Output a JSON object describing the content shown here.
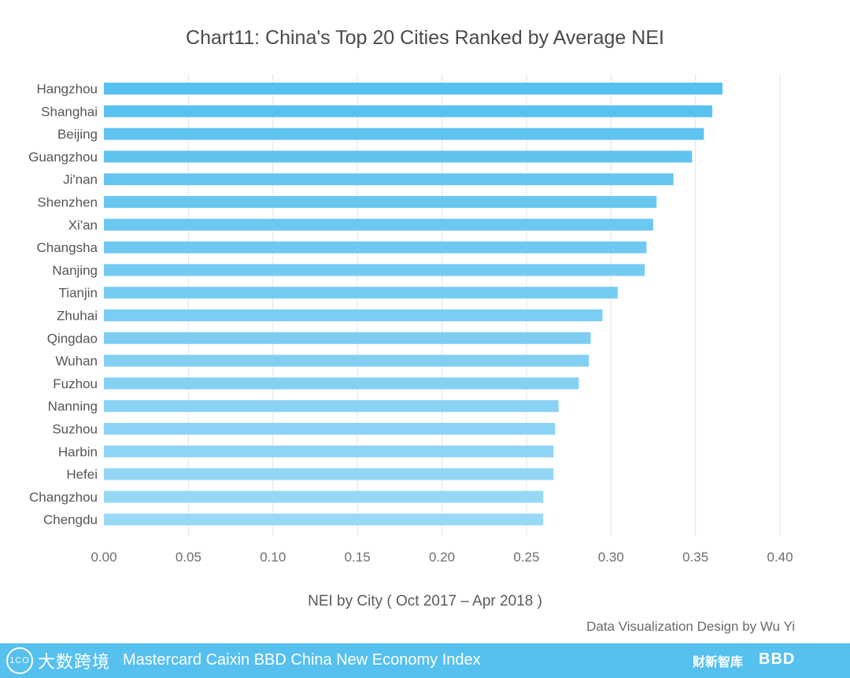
{
  "chart_data": {
    "type": "bar",
    "orientation": "horizontal",
    "title": "Chart11:  China's Top 20 Cities Ranked by Average NEI",
    "xlabel": "NEI by City ( Oct 2017 – Apr 2018 )",
    "ylabel": "",
    "xlim": [
      0,
      0.4
    ],
    "xticks": [
      "0.00",
      "0.05",
      "0.10",
      "0.15",
      "0.20",
      "0.25",
      "0.30",
      "0.35",
      "0.40"
    ],
    "grid": "vertical",
    "categories": [
      "Hangzhou",
      "Shanghai",
      "Beijing",
      "Guangzhou",
      "Ji'nan",
      "Shenzhen",
      "Xi'an",
      "Changsha",
      "Nanjing",
      "Tianjin",
      "Zhuhai",
      "Qingdao",
      "Wuhan",
      "Fuzhou",
      "Nanning",
      "Suzhou",
      "Harbin",
      "Hefei",
      "Changzhou",
      "Chengdu"
    ],
    "values": [
      0.366,
      0.36,
      0.355,
      0.348,
      0.337,
      0.327,
      0.325,
      0.321,
      0.32,
      0.304,
      0.295,
      0.288,
      0.287,
      0.281,
      0.269,
      0.267,
      0.266,
      0.266,
      0.26,
      0.26
    ],
    "colors": {
      "bar_top": "#56c0ef",
      "bar_bottom": "#9ad9f6",
      "grid": "#e3e3e3"
    }
  },
  "credit": "Data Visualization Design by Wu Yi",
  "footer": {
    "title": "Mastercard Caixin BBD China New Economy Index",
    "logo_left": "大数跨境",
    "logo_left_badge": "1CO",
    "logo_right_1": "财新智库",
    "logo_right_2": "BBD",
    "color": "#56c0ef"
  }
}
